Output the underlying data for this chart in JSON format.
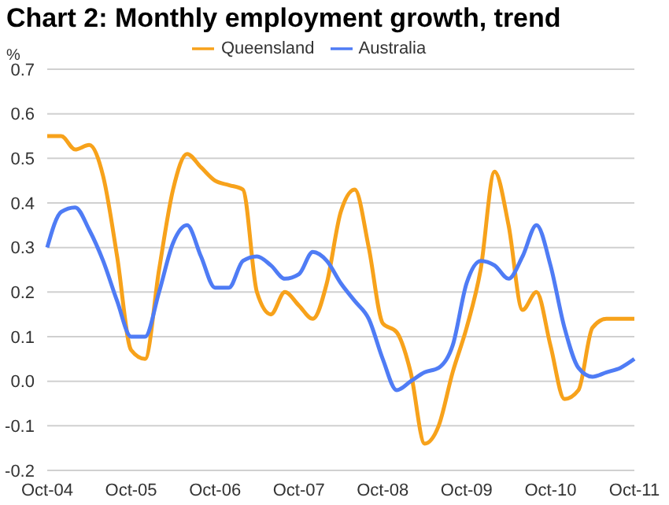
{
  "chart_data": {
    "type": "line",
    "title": "Chart 2: Monthly employment growth, trend",
    "ylabel": "%",
    "categories": [
      "Oct-04",
      null,
      null,
      null,
      null,
      null,
      "Oct-05",
      null,
      null,
      null,
      null,
      null,
      "Oct-06",
      null,
      null,
      null,
      null,
      null,
      "Oct-07",
      null,
      null,
      null,
      null,
      null,
      "Oct-08",
      null,
      null,
      null,
      null,
      null,
      "Oct-09",
      null,
      null,
      null,
      null,
      null,
      "Oct-10",
      null,
      null,
      null,
      null,
      null,
      "Oct-11"
    ],
    "series": [
      {
        "name": "Queensland",
        "color": "#f7a21b",
        "values": [
          0.55,
          0.55,
          0.52,
          0.53,
          0.46,
          0.28,
          0.07,
          0.05,
          0.25,
          0.43,
          0.51,
          0.48,
          0.45,
          0.44,
          0.43,
          0.2,
          0.15,
          0.2,
          0.17,
          0.14,
          0.22,
          0.38,
          0.43,
          0.3,
          0.13,
          0.11,
          0.02,
          -0.14,
          -0.1,
          0.02,
          0.12,
          0.25,
          0.47,
          0.35,
          0.16,
          0.2,
          0.08,
          -0.04,
          -0.02,
          0.12,
          0.14,
          0.14,
          0.14
        ]
      },
      {
        "name": "Australia",
        "color": "#4f7cf5",
        "values": [
          0.3,
          0.38,
          0.39,
          0.34,
          0.27,
          0.18,
          0.1,
          0.1,
          0.2,
          0.31,
          0.35,
          0.28,
          0.21,
          0.21,
          0.27,
          0.28,
          0.26,
          0.23,
          0.24,
          0.29,
          0.27,
          0.22,
          0.18,
          0.14,
          0.05,
          -0.02,
          0.0,
          0.02,
          0.03,
          0.08,
          0.22,
          0.27,
          0.26,
          0.23,
          0.28,
          0.35,
          0.26,
          0.12,
          0.03,
          0.01,
          0.02,
          0.03,
          0.05
        ]
      }
    ],
    "ylim": [
      -0.2,
      0.7
    ],
    "yticks": [
      -0.2,
      -0.1,
      {
        "value": 0,
        "label": "0.0"
      },
      0.1,
      0.2,
      0.3,
      0.4,
      0.5,
      0.6,
      0.7
    ],
    "grid": "y",
    "legend": "top",
    "marker": "none",
    "line_style": "solid"
  }
}
